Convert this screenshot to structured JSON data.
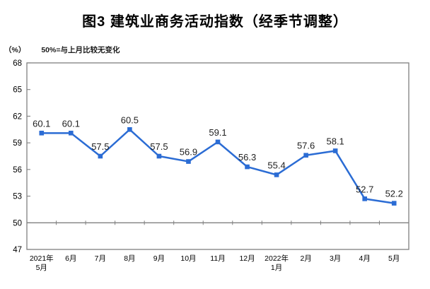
{
  "chart": {
    "title": "图3 建筑业商务活动指数（经季节调整）",
    "unit_label": "（%）",
    "note": "50%=与上月比较无变化"
  },
  "chart_data": {
    "type": "line",
    "title": "图3 建筑业商务活动指数（经季节调整）",
    "unit": "%",
    "annotation": "50%=与上月比较无变化",
    "categories": [
      "2021年5月",
      "6月",
      "7月",
      "8月",
      "9月",
      "10月",
      "11月",
      "12月",
      "2022年1月",
      "2月",
      "3月",
      "4月",
      "5月"
    ],
    "category_label_lines": [
      [
        "2021年",
        "5月"
      ],
      [
        "6月"
      ],
      [
        "7月"
      ],
      [
        "8月"
      ],
      [
        "9月"
      ],
      [
        "10月"
      ],
      [
        "11月"
      ],
      [
        "12月"
      ],
      [
        "2022年",
        "1月"
      ],
      [
        "2月"
      ],
      [
        "3月"
      ],
      [
        "4月"
      ],
      [
        "5月"
      ]
    ],
    "series": [
      {
        "name": "建筑业商务活动指数",
        "values": [
          60.1,
          60.1,
          57.5,
          60.5,
          57.5,
          56.9,
          59.1,
          56.3,
          55.4,
          57.6,
          58.1,
          52.7,
          52.2
        ]
      }
    ],
    "y_ticks": [
      47,
      50,
      53,
      56,
      59,
      62,
      65,
      68
    ],
    "ylim": [
      47,
      68
    ],
    "reference_line": 50,
    "grid": false,
    "legend_position": "none",
    "colors": {
      "line": "#2B6CD4",
      "marker": "#2B6CD4",
      "axis": "#808080",
      "text": "#000000",
      "data_label": "#1f1f1f"
    },
    "marker_shape": "square"
  }
}
